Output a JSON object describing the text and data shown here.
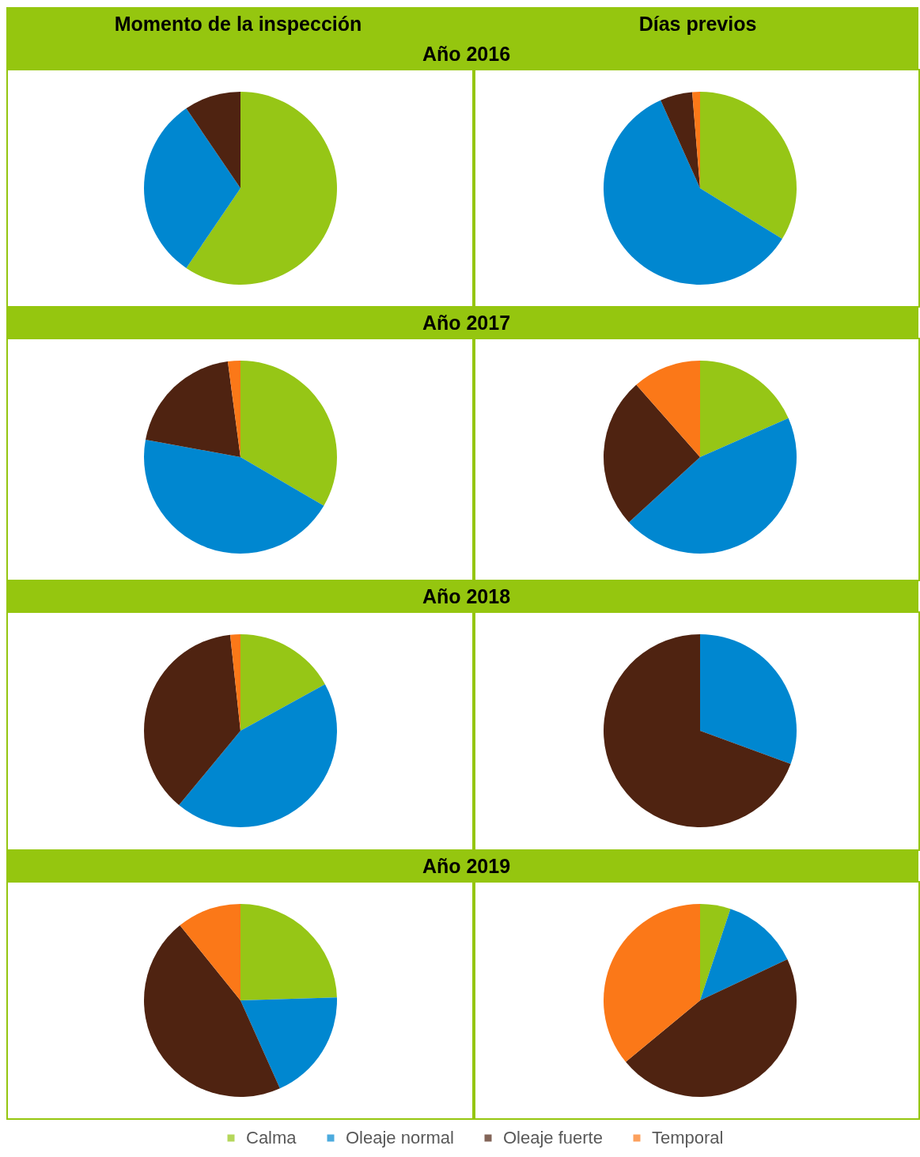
{
  "chart_data": [
    {
      "type": "pie",
      "title": "Año 2016",
      "subtitle": "Momento de la inspección",
      "categories": [
        "Calma",
        "Oleaje normal",
        "Oleaje fuerte",
        "Temporal"
      ],
      "values": [
        59.5,
        31.0,
        9.5,
        0
      ],
      "colors": [
        "#96c616",
        "#0087d0",
        "#4f2311",
        "#fb7818"
      ],
      "legend": "bottom"
    },
    {
      "type": "pie",
      "subtitle": "Días previos",
      "categories": [
        null,
        null,
        null,
        null
      ],
      "values": [
        33.8,
        59.5,
        5.4,
        1.3
      ],
      "colors": [
        "#96c616",
        "#0087d0",
        "#4f2311",
        "#fb7818"
      ]
    },
    {
      "type": "pie",
      "title": "Año 2017",
      "categories": [
        null,
        null,
        null,
        null
      ],
      "values": [
        33.4,
        44.5,
        20.0,
        2.1
      ],
      "colors": [
        "#96c616",
        "#0087d0",
        "#4f2311",
        "#fb7818"
      ]
    },
    {
      "type": "pie",
      "categories": [
        null,
        null,
        null,
        null
      ],
      "values": [
        18.4,
        44.8,
        25.3,
        11.5
      ],
      "colors": [
        "#96c616",
        "#0087d0",
        "#4f2311",
        "#fb7818"
      ]
    },
    {
      "type": "pie",
      "title": "Año 2018",
      "categories": [
        null,
        null,
        null,
        null
      ],
      "values": [
        17.0,
        44.0,
        37.3,
        1.7
      ],
      "colors": [
        "#96c616",
        "#0087d0",
        "#4f2311",
        "#fb7818"
      ]
    },
    {
      "type": "pie",
      "categories": [
        null,
        null,
        null,
        null
      ],
      "values": [
        0,
        30.6,
        69.4,
        0
      ],
      "colors": [
        "#96c616",
        "#0087d0",
        "#4f2311",
        "#fb7818"
      ]
    },
    {
      "type": "pie",
      "title": "Año 2019",
      "categories": [
        null,
        null,
        null,
        null
      ],
      "values": [
        24.5,
        18.8,
        45.9,
        10.8
      ],
      "colors": [
        "#96c616",
        "#0087d0",
        "#4f2311",
        "#fb7818"
      ]
    },
    {
      "type": "pie",
      "categories": [
        null,
        null,
        null,
        null
      ],
      "values": [
        5.1,
        12.9,
        46.0,
        36.0
      ],
      "colors": [
        "#96c616",
        "#0087d0",
        "#4f2311",
        "#fb7818"
      ]
    }
  ]
}
